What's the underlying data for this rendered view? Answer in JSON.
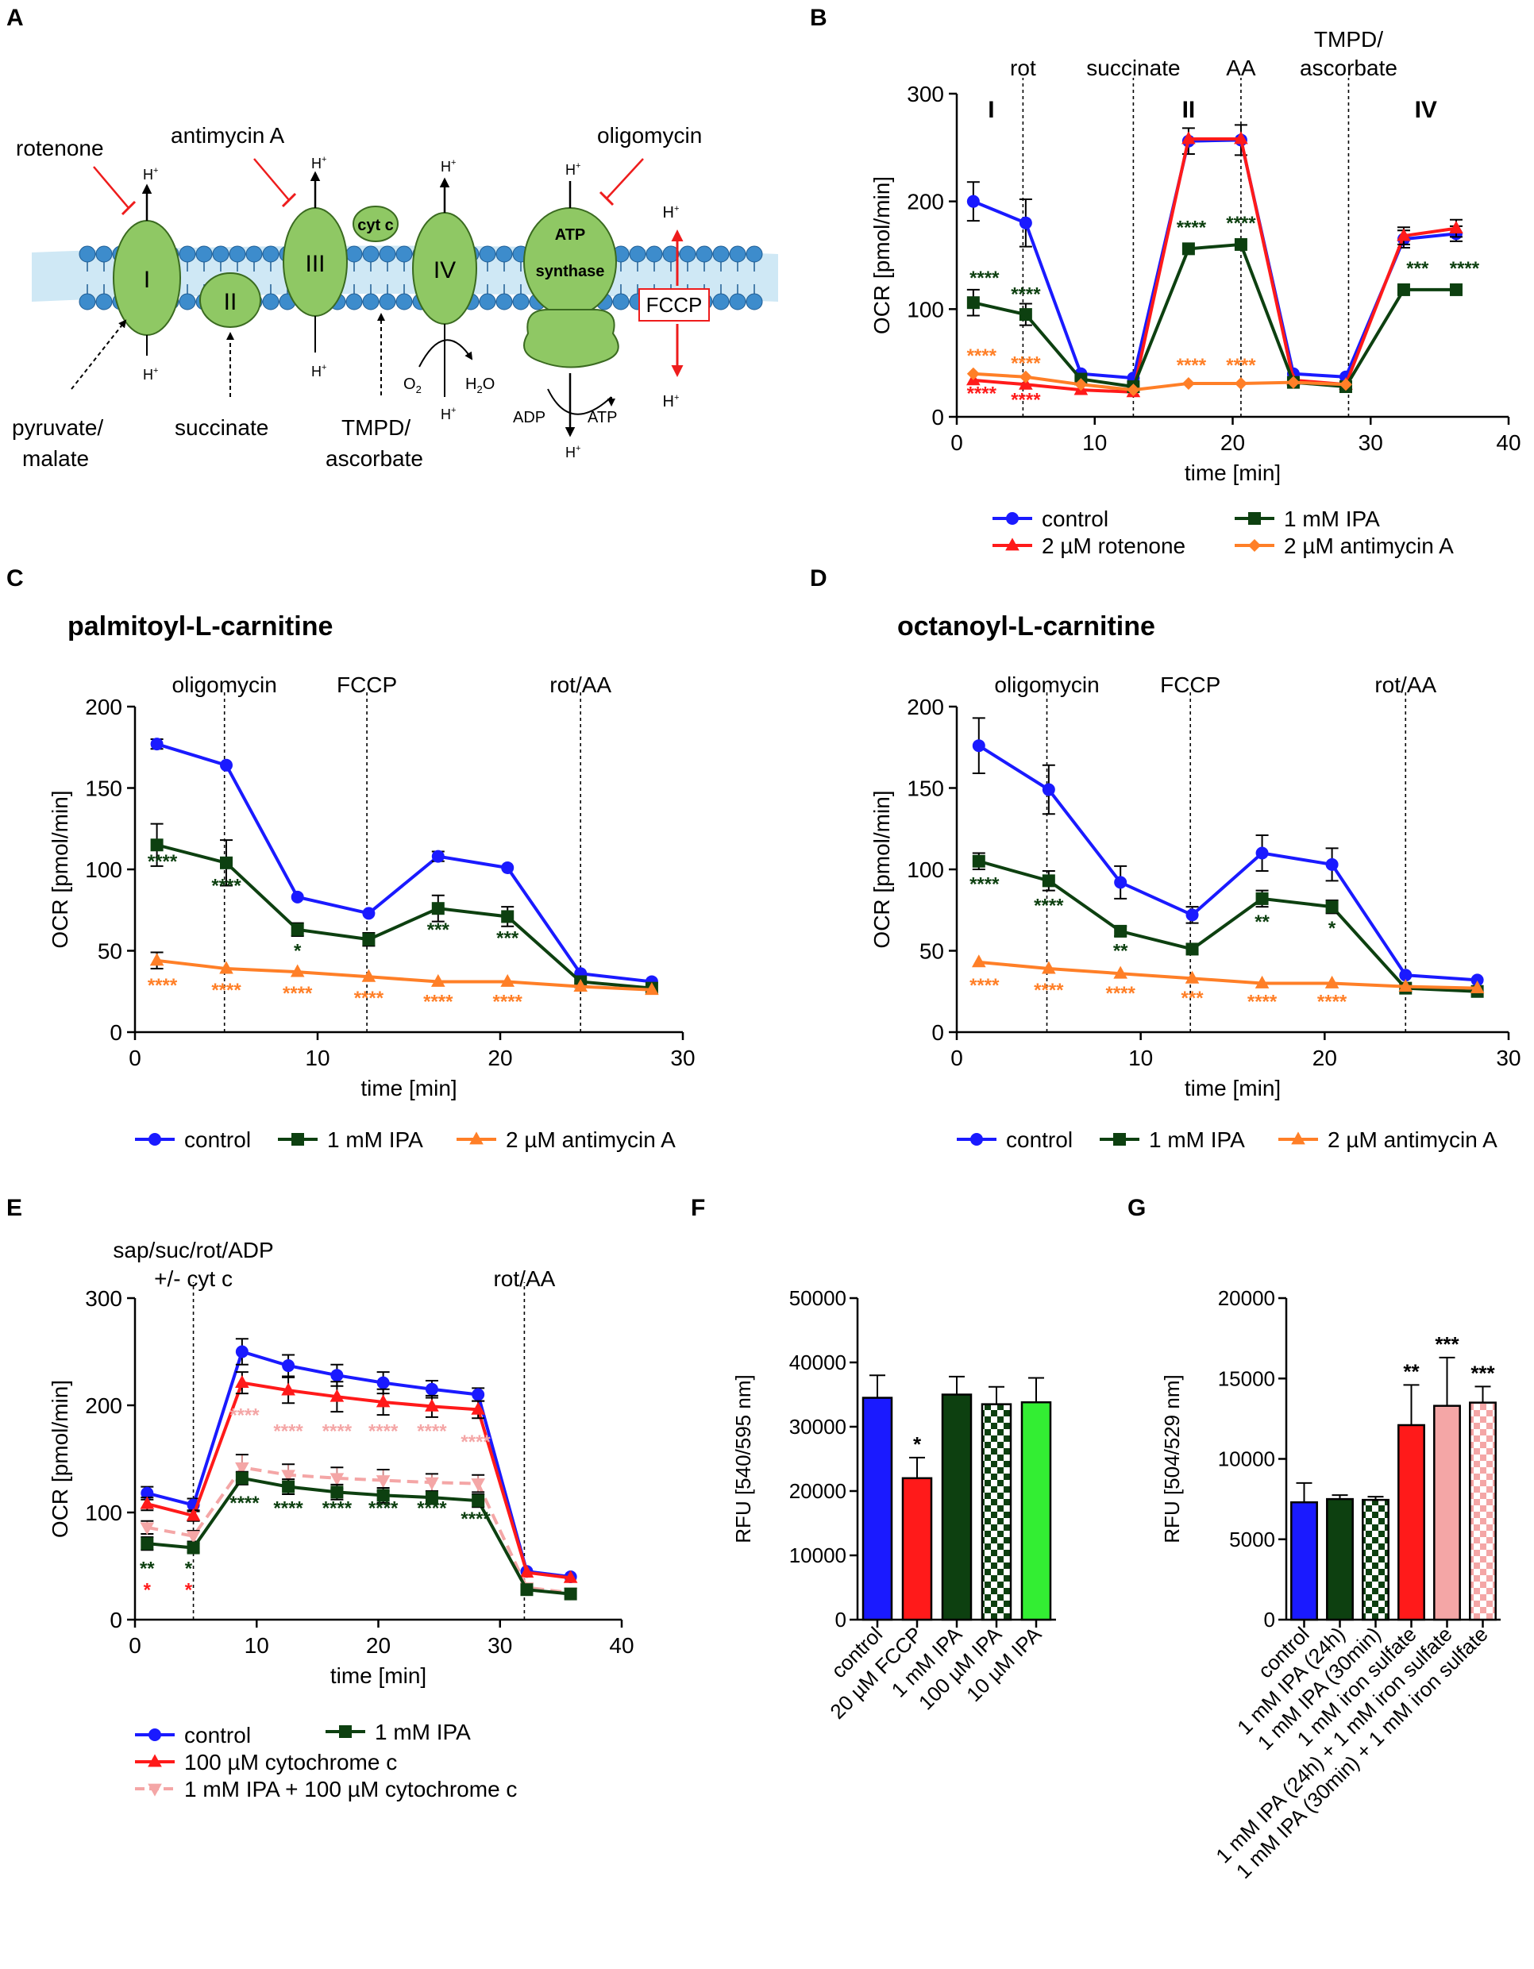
{
  "panel_letters": {
    "A": "A",
    "B": "B",
    "C": "C",
    "D": "D",
    "E": "E",
    "F": "F",
    "G": "G"
  },
  "colors": {
    "control": "#1a1aff",
    "ipa": "#0d4010",
    "rot": "#ff1a1a",
    "aa": "#ff7f27",
    "cytc": "#ff1a1a",
    "ipa_cytc": "#f4a6a6",
    "light_green": "#33ee33",
    "pink": "#f4a6a6",
    "membrane": "#cfe8f5",
    "lipid": "#3d8ccc",
    "protein": "#8fc864"
  },
  "diagram": {
    "complexes": [
      "I",
      "II",
      "III",
      "IV"
    ],
    "cytc": "cyt c",
    "atp_synthase": [
      "ATP",
      "synthase"
    ],
    "fccp": "FCCP",
    "inhibitors": {
      "rotenone": "rotenone",
      "antimycin": "antimycin A",
      "oligomycin": "oligomycin"
    },
    "substrates": {
      "pyruvate_1": "pyruvate/",
      "pyruvate_2": "malate",
      "succinate": "succinate",
      "tmpd_1": "TMPD/",
      "tmpd_2": "ascorbate"
    },
    "proton": "H",
    "plus": "+",
    "o2": "O",
    "o2_sub": "2",
    "h2o_1": "H",
    "h2o_sub": "2",
    "h2o_2": "O",
    "adp": "ADP",
    "atp": "ATP"
  },
  "chart_data": [
    {
      "id": "B",
      "type": "line",
      "title": "",
      "xlabel": "time [min]",
      "ylabel": "OCR [pmol/min]",
      "xlim": [
        0,
        40
      ],
      "ylim": [
        0,
        300
      ],
      "xticks": [
        0,
        10,
        20,
        30,
        40
      ],
      "yticks": [
        0,
        100,
        200,
        300
      ],
      "vlines": [
        {
          "x": 4.8,
          "label": "rot"
        },
        {
          "x": 12.8,
          "label": "succinate"
        },
        {
          "x": 20.6,
          "label": "AA"
        },
        {
          "x": 28.4,
          "label_1": "TMPD/",
          "label_2": "ascorbate"
        }
      ],
      "region_labels": [
        {
          "x": 2.5,
          "label": "I"
        },
        {
          "x": 16.8,
          "label": "II"
        },
        {
          "x": 34.0,
          "label": "IV"
        }
      ],
      "x": [
        1.2,
        5.0,
        9.0,
        12.8,
        16.8,
        20.6,
        24.4,
        28.2,
        32.4,
        36.2
      ],
      "series": [
        {
          "name": "control",
          "color": "#1a1aff",
          "marker": "circle",
          "values": [
            200,
            180,
            40,
            36,
            256,
            257,
            40,
            37,
            165,
            170
          ],
          "err": [
            18,
            22,
            0,
            0,
            12,
            14,
            0,
            0,
            8,
            7
          ]
        },
        {
          "name": "2 µM rotenone",
          "color": "#ff1a1a",
          "marker": "triangle",
          "values": [
            34,
            30,
            25,
            23,
            258,
            258,
            34,
            30,
            168,
            175
          ],
          "err": [
            0,
            0,
            0,
            0,
            0,
            0,
            0,
            0,
            8,
            8
          ]
        },
        {
          "name": "1 mM IPA",
          "color": "#0d4010",
          "marker": "square",
          "values": [
            106,
            95,
            35,
            28,
            156,
            160,
            32,
            28,
            118,
            118
          ],
          "err": [
            12,
            10,
            0,
            0,
            0,
            0,
            0,
            0,
            0,
            0
          ]
        },
        {
          "name": "2 µM antimycin A",
          "color": "#ff7f27",
          "marker": "diamond",
          "values": [
            40,
            37,
            30,
            25,
            31,
            31,
            32,
            30,
            null,
            null
          ],
          "err": [
            0,
            0,
            0,
            0,
            0,
            0,
            0,
            0,
            0,
            0
          ]
        }
      ],
      "annotations": [
        {
          "x": 2.0,
          "y": 123,
          "text": "****",
          "color": "#0d4010"
        },
        {
          "x": 5.0,
          "y": 108,
          "text": "****",
          "color": "#0d4010"
        },
        {
          "x": 17.0,
          "y": 170,
          "text": "****",
          "color": "#0d4010"
        },
        {
          "x": 20.6,
          "y": 174,
          "text": "****",
          "color": "#0d4010"
        },
        {
          "x": 33.4,
          "y": 132,
          "text": "***",
          "color": "#0d4010"
        },
        {
          "x": 36.8,
          "y": 132,
          "text": "****",
          "color": "#0d4010"
        },
        {
          "x": 1.8,
          "y": 51,
          "text": "****",
          "color": "#ff7f27"
        },
        {
          "x": 5.0,
          "y": 44,
          "text": "****",
          "color": "#ff7f27"
        },
        {
          "x": 17.0,
          "y": 42,
          "text": "****",
          "color": "#ff7f27"
        },
        {
          "x": 20.6,
          "y": 42,
          "text": "****",
          "color": "#ff7f27"
        },
        {
          "x": 1.8,
          "y": 16,
          "text": "****",
          "color": "#ff1a1a"
        },
        {
          "x": 5.0,
          "y": 10,
          "text": "****",
          "color": "#ff1a1a"
        }
      ],
      "legend": [
        [
          "control",
          "1 mM IPA"
        ],
        [
          "2 µM rotenone",
          "2 µM antimycin A"
        ]
      ]
    },
    {
      "id": "C",
      "type": "line",
      "title": "palmitoyl-L-carnitine",
      "xlabel": "time [min]",
      "ylabel": "OCR [pmol/min]",
      "xlim": [
        0,
        30
      ],
      "ylim": [
        0,
        200
      ],
      "xticks": [
        0,
        10,
        20,
        30
      ],
      "yticks": [
        0,
        50,
        100,
        150,
        200
      ],
      "vlines": [
        {
          "x": 4.9,
          "label": "oligomycin"
        },
        {
          "x": 12.7,
          "label": "FCCP"
        },
        {
          "x": 24.4,
          "label": "rot/AA"
        }
      ],
      "x": [
        1.2,
        5.0,
        8.9,
        12.8,
        16.6,
        20.4,
        24.4,
        28.3
      ],
      "series": [
        {
          "name": "control",
          "color": "#1a1aff",
          "marker": "circle",
          "values": [
            177,
            164,
            83,
            73,
            108,
            101,
            36,
            31
          ],
          "err": [
            3,
            0,
            0,
            0,
            3,
            0,
            0,
            0
          ]
        },
        {
          "name": "1 mM IPA",
          "color": "#0d4010",
          "marker": "square",
          "values": [
            115,
            104,
            63,
            57,
            76,
            71,
            31,
            27
          ],
          "err": [
            13,
            14,
            4,
            4,
            8,
            6,
            0,
            0
          ]
        },
        {
          "name": "2 µM antimycin A",
          "color": "#ff7f27",
          "marker": "triangle",
          "values": [
            44,
            39,
            37,
            34,
            31,
            31,
            28,
            26
          ],
          "err": [
            5,
            0,
            0,
            0,
            0,
            0,
            0,
            0
          ]
        }
      ],
      "annotations": [
        {
          "x": 1.5,
          "y": 101,
          "text": "****",
          "color": "#0d4010"
        },
        {
          "x": 5.0,
          "y": 86,
          "text": "****",
          "color": "#0d4010"
        },
        {
          "x": 8.9,
          "y": 46,
          "text": "*",
          "color": "#0d4010"
        },
        {
          "x": 16.6,
          "y": 59,
          "text": "***",
          "color": "#0d4010"
        },
        {
          "x": 20.4,
          "y": 54,
          "text": "***",
          "color": "#0d4010"
        },
        {
          "x": 1.5,
          "y": 25,
          "text": "****",
          "color": "#ff7f27"
        },
        {
          "x": 5.0,
          "y": 22,
          "text": "****",
          "color": "#ff7f27"
        },
        {
          "x": 8.9,
          "y": 20,
          "text": "****",
          "color": "#ff7f27"
        },
        {
          "x": 12.8,
          "y": 17,
          "text": "****",
          "color": "#ff7f27"
        },
        {
          "x": 16.6,
          "y": 15,
          "text": "****",
          "color": "#ff7f27"
        },
        {
          "x": 20.4,
          "y": 15,
          "text": "****",
          "color": "#ff7f27"
        }
      ],
      "legend": [
        "control",
        "1 mM IPA",
        "2 µM antimycin A"
      ]
    },
    {
      "id": "D",
      "type": "line",
      "title": "octanoyl-L-carnitine",
      "xlabel": "time [min]",
      "ylabel": "OCR [pmol/min]",
      "xlim": [
        0,
        30
      ],
      "ylim": [
        0,
        200
      ],
      "xticks": [
        0,
        10,
        20,
        30
      ],
      "yticks": [
        0,
        50,
        100,
        150,
        200
      ],
      "vlines": [
        {
          "x": 4.9,
          "label": "oligomycin"
        },
        {
          "x": 12.7,
          "label": "FCCP"
        },
        {
          "x": 24.4,
          "label": "rot/AA"
        }
      ],
      "x": [
        1.2,
        5.0,
        8.9,
        12.8,
        16.6,
        20.4,
        24.4,
        28.3
      ],
      "series": [
        {
          "name": "control",
          "color": "#1a1aff",
          "marker": "circle",
          "values": [
            176,
            149,
            92,
            72,
            110,
            103,
            35,
            32
          ],
          "err": [
            17,
            15,
            10,
            5,
            11,
            10,
            0,
            0
          ]
        },
        {
          "name": "1 mM IPA",
          "color": "#0d4010",
          "marker": "square",
          "values": [
            105,
            93,
            62,
            51,
            82,
            77,
            27,
            25
          ],
          "err": [
            5,
            6,
            3,
            3,
            5,
            4,
            0,
            0
          ]
        },
        {
          "name": "2 µM antimycin A",
          "color": "#ff7f27",
          "marker": "triangle",
          "values": [
            43,
            39,
            36,
            33,
            30,
            30,
            28,
            27
          ],
          "err": [
            0,
            0,
            0,
            0,
            0,
            0,
            0,
            0
          ]
        }
      ],
      "annotations": [
        {
          "x": 1.5,
          "y": 87,
          "text": "****",
          "color": "#0d4010"
        },
        {
          "x": 5.0,
          "y": 74,
          "text": "****",
          "color": "#0d4010"
        },
        {
          "x": 8.9,
          "y": 46,
          "text": "**",
          "color": "#0d4010"
        },
        {
          "x": 16.6,
          "y": 64,
          "text": "**",
          "color": "#0d4010"
        },
        {
          "x": 20.4,
          "y": 60,
          "text": "*",
          "color": "#0d4010"
        },
        {
          "x": 1.5,
          "y": 25,
          "text": "****",
          "color": "#ff7f27"
        },
        {
          "x": 5.0,
          "y": 22,
          "text": "****",
          "color": "#ff7f27"
        },
        {
          "x": 8.9,
          "y": 20,
          "text": "****",
          "color": "#ff7f27"
        },
        {
          "x": 12.8,
          "y": 17,
          "text": "***",
          "color": "#ff7f27"
        },
        {
          "x": 16.6,
          "y": 15,
          "text": "****",
          "color": "#ff7f27"
        },
        {
          "x": 20.4,
          "y": 15,
          "text": "****",
          "color": "#ff7f27"
        }
      ],
      "legend": [
        "control",
        "1 mM IPA",
        "2 µM antimycin A"
      ]
    },
    {
      "id": "E",
      "type": "line",
      "title": "",
      "xlabel": "time [min]",
      "ylabel": "OCR [pmol/min]",
      "xlim": [
        0,
        40
      ],
      "ylim": [
        0,
        300
      ],
      "xticks": [
        0,
        10,
        20,
        30,
        40
      ],
      "yticks": [
        0,
        100,
        200,
        300
      ],
      "vlines": [
        {
          "x": 4.8,
          "label_1": "sap/suc/rot/ADP",
          "label_2": "+/- cyt c"
        },
        {
          "x": 32.0,
          "label": "rot/AA"
        }
      ],
      "x": [
        1.0,
        4.8,
        8.8,
        12.6,
        16.6,
        20.4,
        24.4,
        28.2,
        32.2,
        35.8
      ],
      "series": [
        {
          "name": "control",
          "color": "#1a1aff",
          "marker": "circle",
          "values": [
            118,
            107,
            250,
            237,
            228,
            221,
            215,
            210,
            45,
            40
          ],
          "err": [
            6,
            6,
            12,
            10,
            10,
            10,
            8,
            6,
            0,
            0
          ]
        },
        {
          "name": "100 µM cytochrome c",
          "color": "#ff1a1a",
          "marker": "triangle",
          "values": [
            108,
            97,
            221,
            214,
            208,
            203,
            199,
            196,
            44,
            39
          ],
          "err": [
            6,
            5,
            10,
            12,
            14,
            12,
            10,
            8,
            0,
            0
          ]
        },
        {
          "name": "1 mM IPA + 100 µM cytochrome c",
          "color": "#f4a6a6",
          "marker": "invtriangle",
          "dashed": true,
          "values": [
            86,
            78,
            142,
            135,
            132,
            130,
            128,
            127,
            30,
            25
          ],
          "err": [
            6,
            5,
            12,
            10,
            10,
            10,
            8,
            8,
            0,
            0
          ]
        },
        {
          "name": "1 mM IPA",
          "color": "#0d4010",
          "marker": "square",
          "values": [
            71,
            67,
            132,
            124,
            119,
            116,
            114,
            111,
            28,
            24
          ],
          "err": [
            6,
            4,
            6,
            7,
            7,
            7,
            6,
            6,
            0,
            0
          ]
        }
      ],
      "annotations": [
        {
          "x": 9.0,
          "y": 185,
          "text": "****",
          "color": "#f4a6a6"
        },
        {
          "x": 12.6,
          "y": 170,
          "text": "****",
          "color": "#f4a6a6"
        },
        {
          "x": 16.6,
          "y": 170,
          "text": "****",
          "color": "#f4a6a6"
        },
        {
          "x": 20.4,
          "y": 170,
          "text": "****",
          "color": "#f4a6a6"
        },
        {
          "x": 24.4,
          "y": 170,
          "text": "****",
          "color": "#f4a6a6"
        },
        {
          "x": 28.0,
          "y": 160,
          "text": "****",
          "color": "#f4a6a6"
        },
        {
          "x": 9.0,
          "y": 103,
          "text": "****",
          "color": "#0d4010"
        },
        {
          "x": 12.6,
          "y": 98,
          "text": "****",
          "color": "#0d4010"
        },
        {
          "x": 16.6,
          "y": 98,
          "text": "****",
          "color": "#0d4010"
        },
        {
          "x": 20.4,
          "y": 98,
          "text": "****",
          "color": "#0d4010"
        },
        {
          "x": 24.4,
          "y": 98,
          "text": "****",
          "color": "#0d4010"
        },
        {
          "x": 28.0,
          "y": 88,
          "text": "****",
          "color": "#0d4010"
        },
        {
          "x": 1.0,
          "y": 42,
          "text": "**",
          "color": "#0d4010"
        },
        {
          "x": 4.4,
          "y": 42,
          "text": "*",
          "color": "#0d4010"
        },
        {
          "x": 1.0,
          "y": 22,
          "text": "*",
          "color": "#ff1a1a"
        },
        {
          "x": 4.4,
          "y": 22,
          "text": "*",
          "color": "#ff1a1a"
        }
      ],
      "legend": [
        [
          "control",
          "1 mM IPA"
        ],
        [
          "100 µM cytochrome c"
        ],
        [
          "1 mM IPA + 100 µM cytochrome c"
        ]
      ]
    },
    {
      "id": "F",
      "type": "bar",
      "title": "",
      "xlabel": "",
      "ylabel": "RFU [540/595 nm]",
      "ylim": [
        0,
        50000
      ],
      "yticks": [
        0,
        10000,
        20000,
        30000,
        40000,
        50000
      ],
      "categories": [
        "control",
        "20 µM FCCP",
        "1 mM IPA",
        "100 µM IPA",
        "10 µM IPA"
      ],
      "values": [
        34500,
        22000,
        35000,
        33500,
        33800
      ],
      "err": [
        3500,
        3200,
        2800,
        2700,
        3800
      ],
      "fills": [
        "#1a1aff",
        "#ff1a1a",
        "#0d4010",
        "check-green",
        "#33ee33"
      ],
      "sig": [
        "",
        "*",
        "",
        "",
        ""
      ]
    },
    {
      "id": "G",
      "type": "bar",
      "title": "",
      "xlabel": "",
      "ylabel": "RFU [504/529 nm]",
      "ylim": [
        0,
        20000
      ],
      "yticks": [
        0,
        5000,
        10000,
        15000,
        20000
      ],
      "categories": [
        "control",
        "1 mM IPA (24h)",
        "1 mM IPA (30min)",
        "1 mM iron sulfate",
        "1 mM IPA (24h) + 1 mM iron sulfate",
        "1 mM IPA (30min) + 1 mM iron sulfate"
      ],
      "values": [
        7300,
        7500,
        7450,
        12100,
        13300,
        13500
      ],
      "err": [
        1200,
        250,
        200,
        2500,
        3000,
        1000
      ],
      "fills": [
        "#1a1aff",
        "#0d4010",
        "check-green",
        "#ff1a1a",
        "#f4a6a6",
        "check-pink"
      ],
      "sig": [
        "",
        "",
        "",
        "**",
        "***",
        "***"
      ]
    }
  ]
}
